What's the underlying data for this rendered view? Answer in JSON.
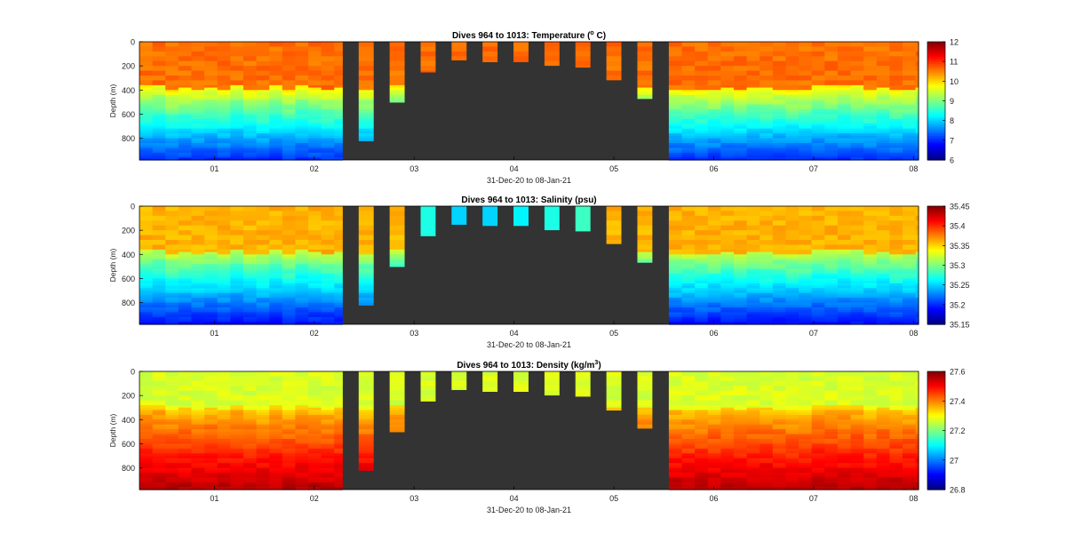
{
  "colors": {
    "background": "#ffffff",
    "gap_fill": "#333333",
    "axis": "#000000",
    "colormap": "jet"
  },
  "chart_data": [
    {
      "type": "heatmap",
      "title": "Dives 964 to 1013: Temperature (",
      "title_superscript": "o",
      "title_suffix": " C)",
      "xlabel": "31-Dec-20 to 08-Jan-21",
      "ylabel": "Depth (m)",
      "x_tick_labels": [
        "01",
        "02",
        "03",
        "04",
        "05",
        "06",
        "07",
        "08"
      ],
      "x_ticks_day": [
        1,
        2,
        3,
        4,
        5,
        6,
        7,
        8
      ],
      "y_tick_labels": [
        "0",
        "200",
        "400",
        "600",
        "800"
      ],
      "y_ticks": [
        0,
        200,
        400,
        600,
        800
      ],
      "xlim_day": [
        0.25,
        8.05
      ],
      "ylim": [
        980,
        0
      ],
      "colorbar": {
        "ticks": [
          "12",
          "11",
          "10",
          "9",
          "8",
          "7",
          "6"
        ],
        "min": 6,
        "max": 12
      },
      "surface_value": 10.6,
      "mid_value": 9.8,
      "deep_value": 7.0,
      "surface_depth": 380,
      "segments": [
        {
          "start_day": 0.25,
          "end_day": 2.28,
          "max_depth": 980
        },
        {
          "start_day": 5.55,
          "end_day": 8.05,
          "max_depth": 980
        }
      ],
      "gap_dives": [
        {
          "day": 2.52,
          "max_depth": 820
        },
        {
          "day": 2.83,
          "max_depth": 500
        },
        {
          "day": 3.14,
          "max_depth": 250
        },
        {
          "day": 3.45,
          "max_depth": 150
        },
        {
          "day": 3.76,
          "max_depth": 165
        },
        {
          "day": 4.07,
          "max_depth": 165
        },
        {
          "day": 4.38,
          "max_depth": 195
        },
        {
          "day": 4.69,
          "max_depth": 210
        },
        {
          "day": 5.0,
          "max_depth": 315
        },
        {
          "day": 5.31,
          "max_depth": 470
        }
      ]
    },
    {
      "type": "heatmap",
      "title": "Dives 964 to 1013: Salinity (psu)",
      "title_superscript": "",
      "title_suffix": "",
      "xlabel": "31-Dec-20 to 08-Jan-21",
      "ylabel": "Depth (m)",
      "x_tick_labels": [
        "01",
        "02",
        "03",
        "04",
        "05",
        "06",
        "07",
        "08"
      ],
      "x_ticks_day": [
        1,
        2,
        3,
        4,
        5,
        6,
        7,
        8
      ],
      "y_tick_labels": [
        "0",
        "200",
        "400",
        "600",
        "800"
      ],
      "y_ticks": [
        0,
        200,
        400,
        600,
        800
      ],
      "xlim_day": [
        0.25,
        8.05
      ],
      "ylim": [
        980,
        0
      ],
      "colorbar": {
        "ticks": [
          "35.45",
          "35.4",
          "35.35",
          "35.3",
          "35.25",
          "35.2",
          "35.15"
        ],
        "min": 35.15,
        "max": 35.45
      },
      "surface_value": 35.36,
      "mid_value": 35.32,
      "deep_value": 35.19,
      "surface_depth": 380,
      "segments": [
        {
          "start_day": 0.25,
          "end_day": 2.28,
          "max_depth": 980
        },
        {
          "start_day": 5.55,
          "end_day": 8.05,
          "max_depth": 980
        }
      ],
      "gap_dives": [
        {
          "day": 2.52,
          "max_depth": 820
        },
        {
          "day": 2.83,
          "max_depth": 500
        },
        {
          "day": 3.14,
          "max_depth": 245,
          "surface_override": 35.27
        },
        {
          "day": 3.45,
          "max_depth": 150,
          "surface_override": 35.25
        },
        {
          "day": 3.76,
          "max_depth": 160,
          "surface_override": 35.25
        },
        {
          "day": 4.07,
          "max_depth": 160,
          "surface_override": 35.26
        },
        {
          "day": 4.38,
          "max_depth": 195,
          "surface_override": 35.27
        },
        {
          "day": 4.69,
          "max_depth": 205,
          "surface_override": 35.28
        },
        {
          "day": 5.0,
          "max_depth": 310
        },
        {
          "day": 5.31,
          "max_depth": 465
        }
      ]
    },
    {
      "type": "heatmap",
      "title": "Dives 964 to 1013: Density (kg/m",
      "title_superscript": "3",
      "title_suffix": ")",
      "xlabel": "31-Dec-20 to 08-Jan-21",
      "ylabel": "Depth (m)",
      "x_tick_labels": [
        "01",
        "02",
        "03",
        "04",
        "05",
        "06",
        "07",
        "08"
      ],
      "x_ticks_day": [
        1,
        2,
        3,
        4,
        5,
        6,
        7,
        8
      ],
      "y_tick_labels": [
        "0",
        "200",
        "400",
        "600",
        "800"
      ],
      "y_ticks": [
        0,
        200,
        400,
        600,
        800
      ],
      "xlim_day": [
        0.25,
        8.05
      ],
      "ylim": [
        980,
        0
      ],
      "colorbar": {
        "ticks": [
          "27.6",
          "27.4",
          "27.2",
          "27",
          "26.8"
        ],
        "min": 26.8,
        "max": 27.6
      },
      "surface_value": 27.27,
      "mid_value": 27.34,
      "deep_value": 27.56,
      "surface_depth": 300,
      "segments": [
        {
          "start_day": 0.25,
          "end_day": 2.28,
          "max_depth": 980
        },
        {
          "start_day": 5.55,
          "end_day": 8.05,
          "max_depth": 980
        }
      ],
      "gap_dives": [
        {
          "day": 2.52,
          "max_depth": 820
        },
        {
          "day": 2.83,
          "max_depth": 500
        },
        {
          "day": 3.14,
          "max_depth": 245
        },
        {
          "day": 3.45,
          "max_depth": 150
        },
        {
          "day": 3.76,
          "max_depth": 165
        },
        {
          "day": 4.07,
          "max_depth": 165
        },
        {
          "day": 4.38,
          "max_depth": 195
        },
        {
          "day": 4.69,
          "max_depth": 205
        },
        {
          "day": 5.0,
          "max_depth": 320
        },
        {
          "day": 5.31,
          "max_depth": 470
        }
      ]
    }
  ]
}
